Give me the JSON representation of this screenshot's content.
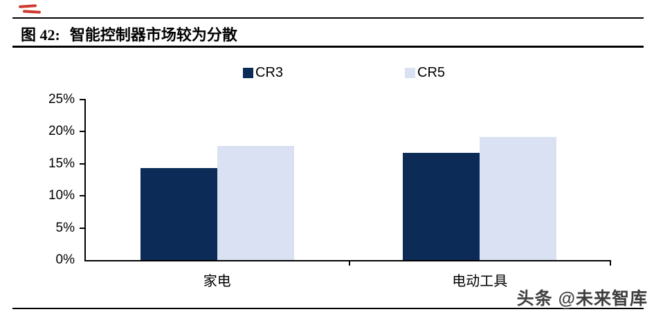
{
  "header": {
    "figure_label": "图 42:",
    "title": "智能控制器市场较为分散"
  },
  "chart_data": {
    "type": "bar",
    "categories": [
      "家电",
      "电动工具"
    ],
    "series": [
      {
        "name": "CR3",
        "color": "#0D2B57",
        "values": [
          14.3,
          16.7
        ]
      },
      {
        "name": "CR5",
        "color": "#D9E1F2",
        "values": [
          17.8,
          19.2
        ]
      }
    ],
    "title": "智能控制器市场较为分散",
    "xlabel": "",
    "ylabel": "",
    "ylim": [
      0,
      25
    ],
    "ytick_step": 5,
    "ytick_labels": [
      "0%",
      "5%",
      "10%",
      "15%",
      "20%",
      "25%"
    ],
    "grid": false,
    "legend_position": "top-center"
  },
  "watermark": {
    "text": "头条 @未来智库"
  },
  "colors": {
    "axis": "#000000",
    "cr3": "#0D2B57",
    "cr5": "#D9E1F2",
    "annotation_red": "#CF3A30"
  }
}
